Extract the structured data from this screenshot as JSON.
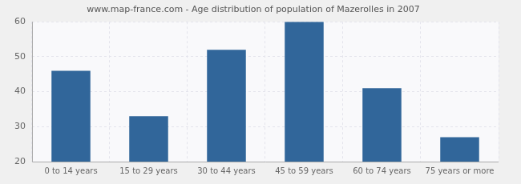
{
  "chart_data": {
    "type": "bar",
    "title": "www.map-france.com - Age distribution of population of Mazerolles in 2007",
    "categories": [
      "0 to 14 years",
      "15 to 29 years",
      "30 to 44 years",
      "45 to 59 years",
      "60 to 74 years",
      "75 years or more"
    ],
    "values": [
      46,
      33,
      52,
      60,
      41,
      27
    ],
    "color": "#31669a",
    "ylim": [
      20,
      60
    ],
    "yticks": [
      20,
      30,
      40,
      50,
      60
    ],
    "grid": true
  }
}
